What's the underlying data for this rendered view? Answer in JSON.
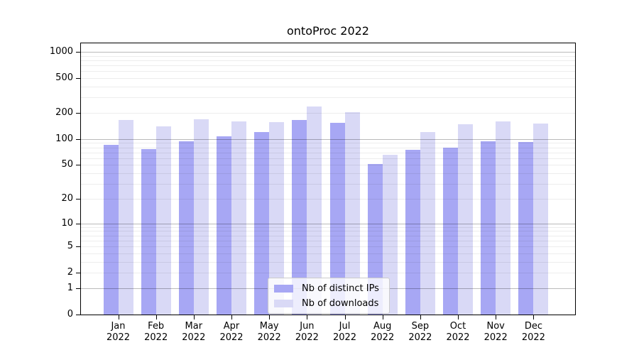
{
  "figure": {
    "title": "ontoProc 2022"
  },
  "chart_data": {
    "type": "bar",
    "title": "ontoProc 2022",
    "categories": [
      "Jan 2022",
      "Feb 2022",
      "Mar 2022",
      "Apr 2022",
      "May 2022",
      "Jun 2022",
      "Jul 2022",
      "Aug 2022",
      "Sep 2022",
      "Oct 2022",
      "Nov 2022",
      "Dec 2022"
    ],
    "x_tick_month": [
      "Jan",
      "Feb",
      "Mar",
      "Apr",
      "May",
      "Jun",
      "Jul",
      "Aug",
      "Sep",
      "Oct",
      "Nov",
      "Dec"
    ],
    "x_tick_year": "2022",
    "series": [
      {
        "name": "Nb of distinct IPs",
        "color": "#a7a7f4",
        "values": [
          86,
          77,
          94,
          108,
          121,
          167,
          154,
          51,
          75,
          80,
          95,
          92
        ]
      },
      {
        "name": "Nb of downloads",
        "color": "#d9d9f6",
        "values": [
          165,
          140,
          168,
          160,
          157,
          235,
          205,
          66,
          120,
          148,
          160,
          152
        ]
      }
    ],
    "xlabel": "",
    "ylabel": "",
    "y_axis": {
      "scale": "log10(value+1)",
      "tick_labels": [
        0,
        1,
        2,
        5,
        10,
        20,
        50,
        100,
        200,
        500,
        1000
      ],
      "range_max": 1000,
      "major_gridlines": [
        1,
        10,
        100,
        1000
      ],
      "minor_gridlines": [
        2,
        3,
        4,
        5,
        6,
        7,
        8,
        9,
        20,
        30,
        40,
        50,
        60,
        70,
        80,
        90,
        200,
        300,
        400,
        500,
        600,
        700,
        800,
        900
      ]
    },
    "grid": true,
    "legend_position": "lower center"
  },
  "colors": {
    "bar_distinct_ips": "#a7a7f4",
    "bar_downloads": "#d9d9f6",
    "axis": "#000000",
    "major_grid": "#bababa",
    "minor_grid": "#ededed",
    "legend_border": "#cccccc"
  }
}
